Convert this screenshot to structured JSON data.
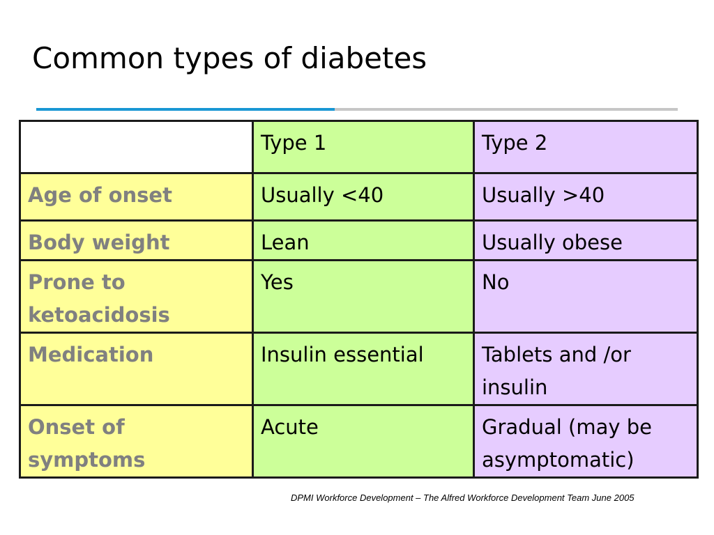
{
  "slide": {
    "title": "Common types of diabetes",
    "footer": "DPMI Workforce Development – The Alfred Workforce Development Team June 2005",
    "colors": {
      "divider_accent": "#1a97d4",
      "divider_rest": "#c6c6c6",
      "type1_column": "#ccff99",
      "type2_column": "#e6ccff",
      "label_column": "#ffff99",
      "label_text": "#808080"
    }
  },
  "table": {
    "headers": [
      "",
      "Type 1",
      "Type 2"
    ],
    "rows": [
      {
        "label": "Age of onset",
        "type1": "Usually <40",
        "type2": "Usually >40"
      },
      {
        "label": "Body weight",
        "type1": "Lean",
        "type2": "Usually obese"
      },
      {
        "label": "Prone to ketoacidosis",
        "type1": "Yes",
        "type2": "No"
      },
      {
        "label": "Medication",
        "type1": "Insulin essential",
        "type2": "Tablets and /or insulin"
      },
      {
        "label": "Onset of symptoms",
        "type1": "Acute",
        "type2": "Gradual (may be asymptomatic)"
      }
    ]
  }
}
